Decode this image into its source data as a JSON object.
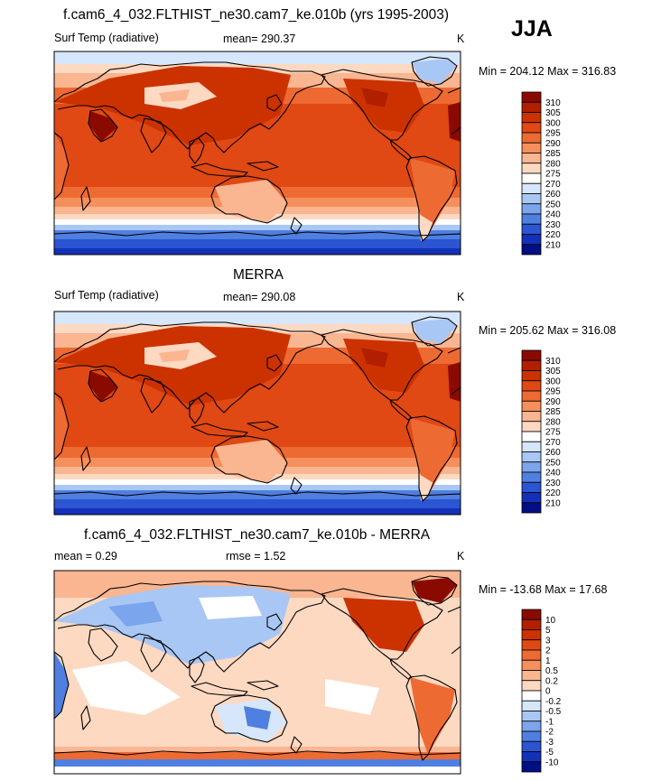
{
  "season": "JJA",
  "panels": [
    {
      "title": "f.cam6_4_032.FLTHIST_ne30.cam7_ke.010b (yrs 1995-2003)",
      "variable": "Surf Temp (radiative)",
      "stat": "mean= 290.37",
      "stat2": "",
      "units": "K",
      "minmax": "Min = 204.12 Max = 316.83"
    },
    {
      "title": "MERRA",
      "variable": "Surf Temp (radiative)",
      "stat": "mean= 290.08",
      "stat2": "",
      "units": "K",
      "minmax": "Min = 205.62 Max = 316.08"
    },
    {
      "title": "f.cam6_4_032.FLTHIST_ne30.cam7_ke.010b - MERRA",
      "variable": "",
      "stat": "mean =   0.29",
      "stat2": "rmse =   1.52",
      "units": "K",
      "minmax": "Min = -13.68 Max =  17.68"
    }
  ],
  "colorbar_abs": {
    "labels": [
      "310",
      "305",
      "300",
      "295",
      "290",
      "285",
      "280",
      "275",
      "270",
      "260",
      "250",
      "240",
      "230",
      "220",
      "210"
    ],
    "colors": [
      "#8b0a00",
      "#b11f00",
      "#cc3200",
      "#e04814",
      "#ee6a33",
      "#f58f5c",
      "#fab591",
      "#fdd9c2",
      "#ffffff",
      "#d6e6fb",
      "#a9c7f4",
      "#7ba5ec",
      "#4f7fe0",
      "#2b55d2",
      "#1330b8",
      "#000f84"
    ]
  },
  "colorbar_diff": {
    "labels": [
      "10",
      "5",
      "3",
      "2",
      "1",
      "0.5",
      "0.2",
      "0",
      "-0.2",
      "-0.5",
      "-1",
      "-2",
      "-3",
      "-5",
      "-10"
    ],
    "colors": [
      "#8b0a00",
      "#b11f00",
      "#cc3200",
      "#e04814",
      "#ee6a33",
      "#f58f5c",
      "#fab591",
      "#fdd9c2",
      "#ffffff",
      "#d6e6fb",
      "#a9c7f4",
      "#7ba5ec",
      "#4f7fe0",
      "#2b55d2",
      "#1330b8",
      "#000f84"
    ]
  },
  "chart_data": [
    {
      "type": "heatmap",
      "title": "f.cam6_4_032.FLTHIST_ne30.cam7_ke.010b (yrs 1995-2003)",
      "variable": "Surf Temp (radiative)",
      "units": "K",
      "mean": 290.37,
      "min": 204.12,
      "max": 316.83,
      "levels": [
        210,
        220,
        230,
        240,
        250,
        260,
        270,
        275,
        280,
        285,
        290,
        295,
        300,
        305,
        310
      ],
      "season": "JJA"
    },
    {
      "type": "heatmap",
      "title": "MERRA",
      "variable": "Surf Temp (radiative)",
      "units": "K",
      "mean": 290.08,
      "min": 205.62,
      "max": 316.08,
      "levels": [
        210,
        220,
        230,
        240,
        250,
        260,
        270,
        275,
        280,
        285,
        290,
        295,
        300,
        305,
        310
      ]
    },
    {
      "type": "heatmap",
      "title": "f.cam6_4_032.FLTHIST_ne30.cam7_ke.010b - MERRA",
      "units": "K",
      "mean": 0.29,
      "rmse": 1.52,
      "min": -13.68,
      "max": 17.68,
      "levels": [
        -10,
        -5,
        -3,
        -2,
        -1,
        -0.5,
        -0.2,
        0,
        0.2,
        0.5,
        1,
        2,
        3,
        5,
        10
      ]
    }
  ]
}
